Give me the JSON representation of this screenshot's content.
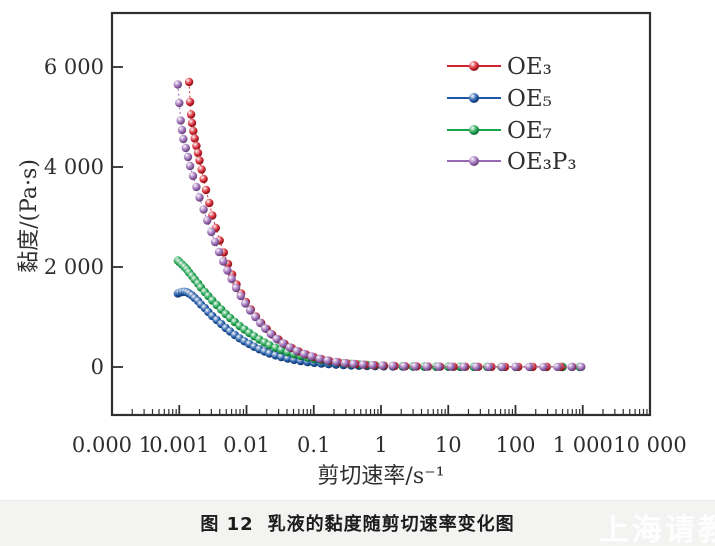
{
  "figure": {
    "caption_no": "图 12",
    "caption_text": "乳液的黏度随剪切速率变化图",
    "watermark": "上海请教"
  },
  "chart_data": {
    "type": "scatter",
    "title": "",
    "xlabel": "剪切速率/s⁻¹",
    "ylabel": "黏度/(Pa·s)",
    "x_scale": "log",
    "xlim": [
      0.0001,
      10000
    ],
    "ylim": [
      0,
      6000
    ],
    "grid": false,
    "legend_position": "upper right",
    "x_tick_values": [
      0.0001,
      0.001,
      0.01,
      0.1,
      1,
      10,
      100,
      1000,
      10000
    ],
    "x_tick_labels": [
      "0.000 1",
      "0.001",
      "0.01",
      "0.1",
      "1",
      "10",
      "100",
      "1 000",
      "10 000"
    ],
    "y_tick_values": [
      0,
      2000,
      4000,
      6000
    ],
    "y_tick_labels": [
      "0",
      "2 000",
      "4 000",
      "6 000"
    ],
    "frame_color": "#2f2f2f",
    "series": [
      {
        "name": "OE₃",
        "color": "#d22430",
        "points": [
          [
            0.0014,
            5700
          ],
          [
            0.00145,
            5300
          ],
          [
            0.0015,
            5050
          ],
          [
            0.00155,
            4880
          ],
          [
            0.00162,
            4720
          ],
          [
            0.0017,
            4570
          ],
          [
            0.0018,
            4420
          ],
          [
            0.0019,
            4280
          ],
          [
            0.002,
            4130
          ],
          [
            0.00215,
            3950
          ],
          [
            0.0023,
            3760
          ],
          [
            0.0025,
            3540
          ],
          [
            0.0028,
            3280
          ],
          [
            0.0031,
            3030
          ],
          [
            0.0035,
            2780
          ],
          [
            0.004,
            2530
          ],
          [
            0.0046,
            2290
          ],
          [
            0.0053,
            2060
          ],
          [
            0.0061,
            1850
          ],
          [
            0.0071,
            1650
          ],
          [
            0.0083,
            1470
          ],
          [
            0.0098,
            1300
          ],
          [
            0.0116,
            1150
          ],
          [
            0.0138,
            1010
          ],
          [
            0.0165,
            880
          ],
          [
            0.02,
            760
          ],
          [
            0.024,
            650
          ],
          [
            0.03,
            550
          ],
          [
            0.037,
            460
          ],
          [
            0.047,
            380
          ],
          [
            0.06,
            310
          ],
          [
            0.077,
            250
          ],
          [
            0.1,
            200
          ],
          [
            0.13,
            158
          ],
          [
            0.17,
            124
          ],
          [
            0.23,
            96
          ],
          [
            0.31,
            74
          ],
          [
            0.42,
            57
          ],
          [
            0.58,
            44
          ],
          [
            0.8,
            34
          ],
          [
            1.1,
            26
          ],
          [
            1.6,
            20
          ],
          [
            2.3,
            15
          ],
          [
            3.4,
            11
          ],
          [
            5,
            8.5
          ],
          [
            7.6,
            6.5
          ],
          [
            12,
            5
          ],
          [
            18,
            4
          ],
          [
            28,
            3.2
          ],
          [
            44,
            2.6
          ],
          [
            70,
            2.2
          ],
          [
            110,
            1.8
          ],
          [
            180,
            1.5
          ],
          [
            290,
            1.3
          ],
          [
            470,
            1.2
          ],
          [
            700,
            1.1
          ]
        ]
      },
      {
        "name": "OE₅",
        "color": "#1d57a5",
        "points": [
          [
            0.00095,
            1470
          ],
          [
            0.001,
            1485
          ],
          [
            0.0011,
            1500
          ],
          [
            0.0012,
            1505
          ],
          [
            0.0013,
            1495
          ],
          [
            0.0014,
            1470
          ],
          [
            0.00155,
            1430
          ],
          [
            0.0017,
            1380
          ],
          [
            0.0019,
            1320
          ],
          [
            0.0021,
            1250
          ],
          [
            0.0024,
            1180
          ],
          [
            0.0027,
            1100
          ],
          [
            0.0031,
            1020
          ],
          [
            0.0036,
            940
          ],
          [
            0.0042,
            860
          ],
          [
            0.0049,
            780
          ],
          [
            0.0057,
            710
          ],
          [
            0.0067,
            640
          ],
          [
            0.0079,
            575
          ],
          [
            0.0093,
            515
          ],
          [
            0.011,
            460
          ],
          [
            0.013,
            405
          ],
          [
            0.0155,
            355
          ],
          [
            0.0185,
            310
          ],
          [
            0.022,
            270
          ],
          [
            0.027,
            232
          ],
          [
            0.033,
            198
          ],
          [
            0.041,
            168
          ],
          [
            0.051,
            142
          ],
          [
            0.064,
            119
          ],
          [
            0.081,
            99
          ],
          [
            0.102,
            82
          ],
          [
            0.13,
            68
          ],
          [
            0.166,
            56
          ],
          [
            0.214,
            46
          ],
          [
            0.277,
            37
          ],
          [
            0.36,
            30
          ],
          [
            0.47,
            25
          ],
          [
            0.62,
            20
          ],
          [
            0.82,
            16
          ],
          [
            1.1,
            13
          ],
          [
            1.5,
            10
          ],
          [
            2.1,
            8
          ],
          [
            3,
            6.4
          ],
          [
            4.4,
            5
          ],
          [
            6.6,
            4
          ],
          [
            10,
            3.2
          ],
          [
            15,
            2.6
          ],
          [
            24,
            2.1
          ],
          [
            38,
            1.7
          ],
          [
            62,
            1.4
          ],
          [
            100,
            1.2
          ],
          [
            170,
            1.1
          ],
          [
            290,
            1.0
          ],
          [
            500,
            0.9
          ],
          [
            900,
            0.85
          ]
        ]
      },
      {
        "name": "OE₇",
        "color": "#1ba24d",
        "points": [
          [
            0.00095,
            2130
          ],
          [
            0.001,
            2100
          ],
          [
            0.0011,
            2050
          ],
          [
            0.0012,
            2000
          ],
          [
            0.0013,
            1950
          ],
          [
            0.0014,
            1890
          ],
          [
            0.00155,
            1820
          ],
          [
            0.0017,
            1750
          ],
          [
            0.0019,
            1670
          ],
          [
            0.0021,
            1590
          ],
          [
            0.0024,
            1500
          ],
          [
            0.0027,
            1420
          ],
          [
            0.0031,
            1330
          ],
          [
            0.0036,
            1240
          ],
          [
            0.0042,
            1150
          ],
          [
            0.0049,
            1060
          ],
          [
            0.0057,
            980
          ],
          [
            0.0067,
            900
          ],
          [
            0.0079,
            820
          ],
          [
            0.0093,
            750
          ],
          [
            0.011,
            680
          ],
          [
            0.013,
            615
          ],
          [
            0.0155,
            550
          ],
          [
            0.0185,
            490
          ],
          [
            0.022,
            435
          ],
          [
            0.027,
            385
          ],
          [
            0.033,
            340
          ],
          [
            0.041,
            295
          ],
          [
            0.051,
            255
          ],
          [
            0.064,
            220
          ],
          [
            0.081,
            188
          ],
          [
            0.102,
            160
          ],
          [
            0.13,
            135
          ],
          [
            0.166,
            114
          ],
          [
            0.214,
            95
          ],
          [
            0.277,
            79
          ],
          [
            0.36,
            65
          ],
          [
            0.47,
            53
          ],
          [
            0.62,
            43
          ],
          [
            0.82,
            35
          ],
          [
            1.1,
            28
          ],
          [
            1.5,
            22
          ],
          [
            2.1,
            18
          ],
          [
            3,
            14
          ],
          [
            4.4,
            11
          ],
          [
            6.6,
            8.5
          ],
          [
            10,
            6.6
          ],
          [
            15,
            5.2
          ],
          [
            24,
            4
          ],
          [
            38,
            3.2
          ],
          [
            62,
            2.5
          ],
          [
            100,
            2
          ],
          [
            170,
            1.7
          ],
          [
            290,
            1.4
          ],
          [
            500,
            1.2
          ],
          [
            900,
            1.0
          ]
        ]
      },
      {
        "name": "OE₃P₃",
        "color": "#9a68b4",
        "points": [
          [
            0.00095,
            5650
          ],
          [
            0.001,
            5280
          ],
          [
            0.00105,
            4930
          ],
          [
            0.0011,
            4740
          ],
          [
            0.00115,
            4560
          ],
          [
            0.00125,
            4380
          ],
          [
            0.00135,
            4200
          ],
          [
            0.00145,
            4020
          ],
          [
            0.0016,
            3820
          ],
          [
            0.0018,
            3600
          ],
          [
            0.002,
            3390
          ],
          [
            0.0023,
            3150
          ],
          [
            0.0026,
            2930
          ],
          [
            0.003,
            2700
          ],
          [
            0.0034,
            2500
          ],
          [
            0.0039,
            2300
          ],
          [
            0.0045,
            2110
          ],
          [
            0.0052,
            1930
          ],
          [
            0.006,
            1760
          ],
          [
            0.007,
            1580
          ],
          [
            0.0082,
            1420
          ],
          [
            0.0096,
            1270
          ],
          [
            0.0113,
            1130
          ],
          [
            0.0135,
            1000
          ],
          [
            0.016,
            880
          ],
          [
            0.019,
            770
          ],
          [
            0.023,
            660
          ],
          [
            0.028,
            560
          ],
          [
            0.035,
            470
          ],
          [
            0.044,
            390
          ],
          [
            0.056,
            320
          ],
          [
            0.072,
            260
          ],
          [
            0.093,
            210
          ],
          [
            0.122,
            165
          ],
          [
            0.16,
            130
          ],
          [
            0.215,
            100
          ],
          [
            0.29,
            78
          ],
          [
            0.39,
            60
          ],
          [
            0.54,
            47
          ],
          [
            0.75,
            36
          ],
          [
            1.05,
            28
          ],
          [
            1.5,
            21
          ],
          [
            2.2,
            16
          ],
          [
            3.2,
            12
          ],
          [
            4.8,
            9
          ],
          [
            7.2,
            7
          ],
          [
            11,
            5.5
          ],
          [
            17,
            4.5
          ],
          [
            26,
            3.6
          ],
          [
            40,
            3
          ],
          [
            63,
            2.5
          ],
          [
            100,
            2.1
          ],
          [
            160,
            1.8
          ],
          [
            260,
            1.6
          ],
          [
            420,
            1.4
          ],
          [
            680,
            1.3
          ],
          [
            950,
            1.2
          ]
        ]
      }
    ]
  }
}
